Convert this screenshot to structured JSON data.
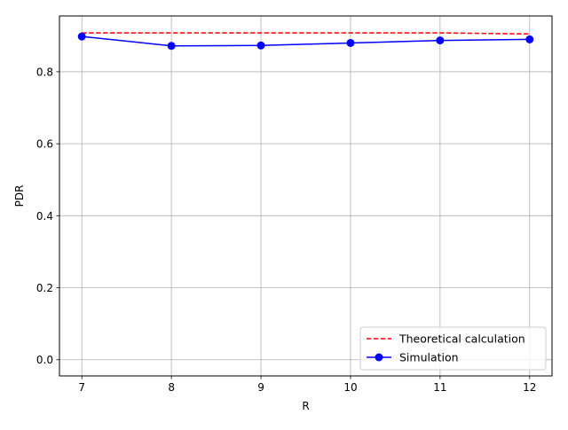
{
  "chart_data": {
    "type": "line",
    "title": "",
    "xlabel": "R",
    "ylabel": "PDR",
    "x": [
      7,
      8,
      9,
      10,
      11,
      12
    ],
    "xlim": [
      6.75,
      12.25
    ],
    "ylim": [
      -0.045,
      0.955
    ],
    "xticks": [
      "7",
      "8",
      "9",
      "10",
      "11",
      "12"
    ],
    "yticks": [
      "0.0",
      "0.2",
      "0.4",
      "0.6",
      "0.8"
    ],
    "grid": true,
    "legend_position": "bottom-right",
    "series": [
      {
        "name": "Theoretical calculation",
        "values": [
          0.908,
          0.908,
          0.908,
          0.908,
          0.908,
          0.905
        ],
        "color": "#ff0000",
        "style": "dashed",
        "marker": "none"
      },
      {
        "name": "Simulation",
        "values": [
          0.898,
          0.872,
          0.873,
          0.88,
          0.887,
          0.89
        ],
        "color": "#0000ff",
        "style": "solid",
        "marker": "circle"
      }
    ]
  }
}
